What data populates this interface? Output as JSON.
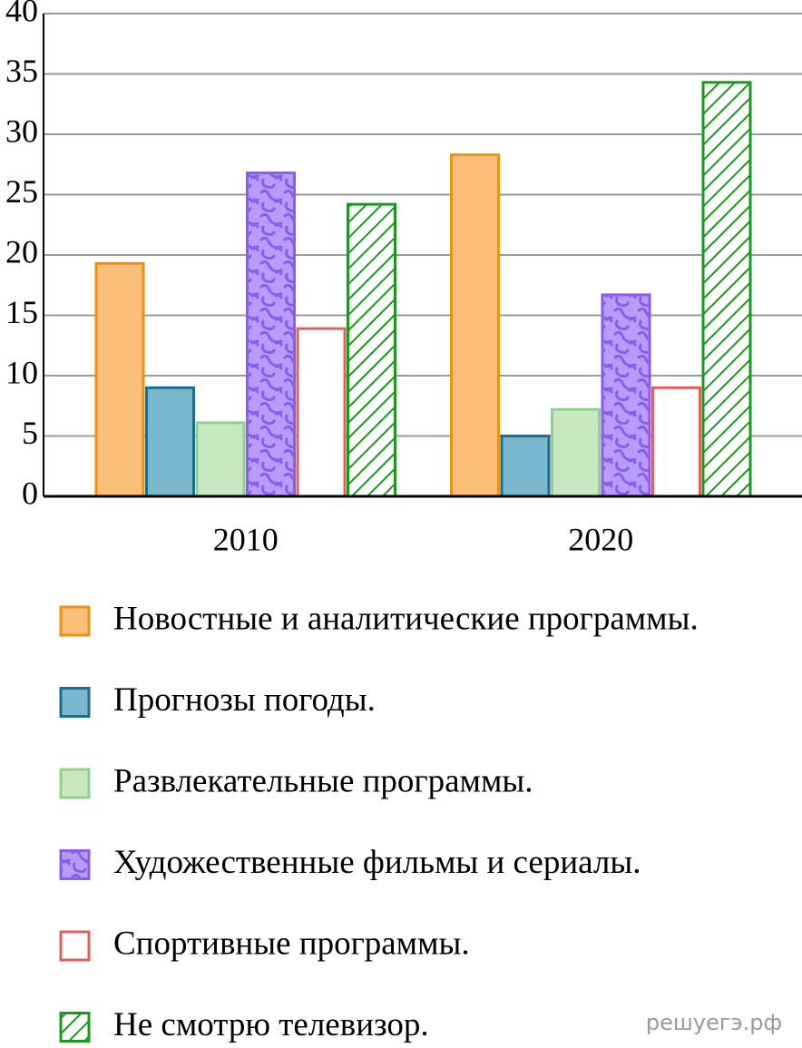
{
  "chart_data": {
    "type": "bar",
    "categories": [
      "2010",
      "2020"
    ],
    "series": [
      {
        "name": "Новостные и аналитические программы.",
        "color": "#fdc07a",
        "stroke": "#f0900f",
        "values": [
          19.3,
          28.3
        ]
      },
      {
        "name": "Прогнозы погоды.",
        "color": "#7ab8d0",
        "stroke": "#1a6e90",
        "values": [
          9,
          5
        ]
      },
      {
        "name": "Развлекательные программы.",
        "color": "#c8e8c0",
        "stroke": "#90d090",
        "values": [
          6.1,
          7.2
        ]
      },
      {
        "name": "Художественные фильмы и сериалы.",
        "color": "#b79cfa",
        "stroke": "#8a5cf0",
        "pattern": "wavy",
        "values": [
          26.8,
          16.7
        ]
      },
      {
        "name": "Спортивные программы.",
        "color": "#ffffff",
        "stroke": "#e06060",
        "values": [
          13.9,
          9
        ]
      },
      {
        "name": "Не смотрю телевизор.",
        "color": "#ffffff",
        "stroke": "#1a9a1a",
        "pattern": "hatch",
        "values": [
          24.2,
          34.3
        ]
      }
    ],
    "ylim": [
      0,
      40
    ],
    "yticks": [
      0,
      5,
      10,
      15,
      20,
      25,
      30,
      35,
      40
    ],
    "grid": true,
    "watermark": "решуегэ.рф"
  }
}
